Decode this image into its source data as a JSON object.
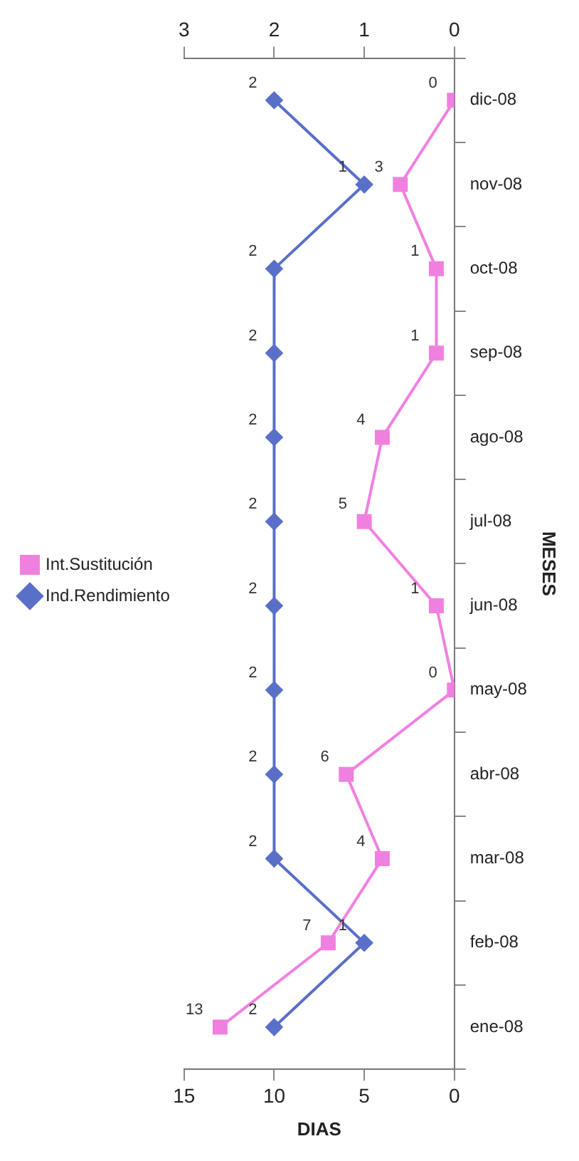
{
  "chart_data": {
    "type": "line",
    "orientation": "horizontal",
    "xlabel": "DIAS",
    "ylabel": "MESES",
    "categories": [
      "dic-08",
      "nov-08",
      "oct-08",
      "sep-08",
      "ago-08",
      "jul-08",
      "jun-08",
      "may-08",
      "abr-08",
      "mar-08",
      "feb-08",
      "ene-08"
    ],
    "series": [
      {
        "name": "Int.Sustitución",
        "color": "#f080e0",
        "marker": "square",
        "values": [
          0,
          3,
          1,
          1,
          4,
          5,
          1,
          0,
          6,
          4,
          7,
          13
        ]
      },
      {
        "name": "Ind.Rendimiento",
        "color": "#5a6fc8",
        "marker": "diamond",
        "axis": "x2",
        "values": [
          2,
          1,
          2,
          2,
          2,
          2,
          2,
          2,
          2,
          2,
          1,
          2
        ]
      }
    ],
    "xlim": [
      15,
      0
    ],
    "xticks": [
      15,
      10,
      5,
      0
    ],
    "x2lim": [
      3,
      0
    ],
    "x2ticks": [
      3,
      2,
      1,
      0
    ],
    "grid": false,
    "legend": "left",
    "data_labels": true
  }
}
